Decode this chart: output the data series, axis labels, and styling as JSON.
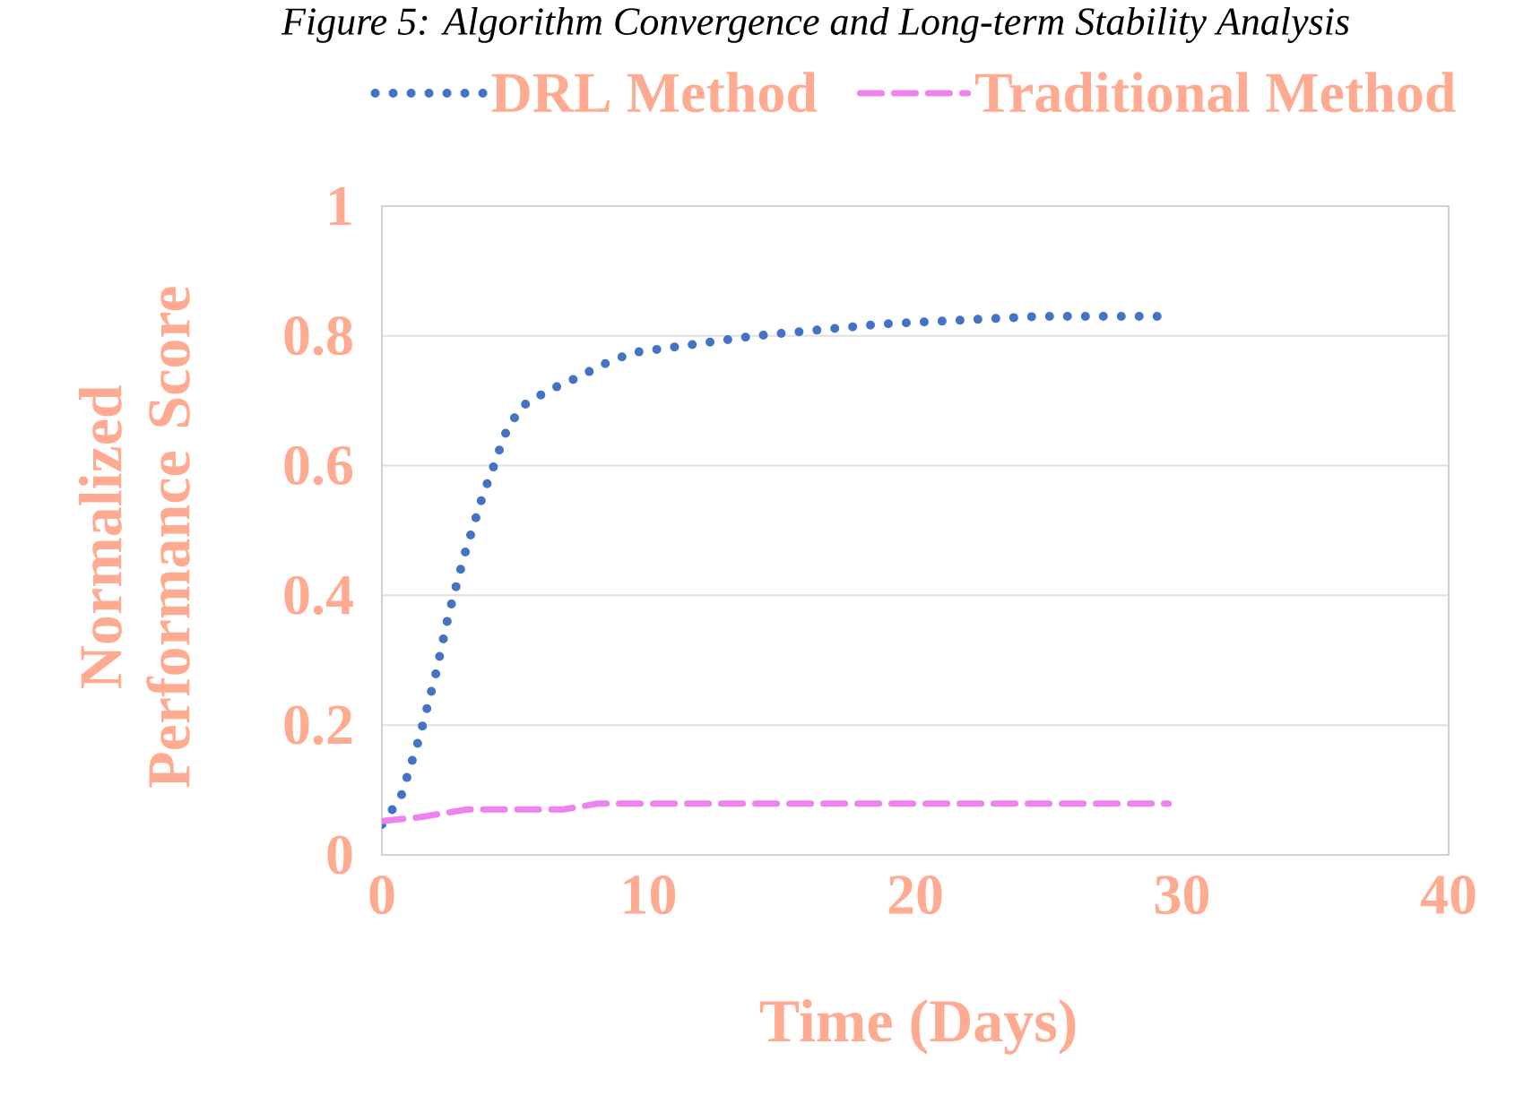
{
  "chart_data": {
    "type": "line",
    "title": "Figure 5: Algorithm Convergence and Long-term Stability Analysis",
    "xlabel": "Time (Days)",
    "ylabel": "Normalized Performance Score",
    "xlim": [
      0,
      40
    ],
    "xticks": [
      0,
      10,
      20,
      30,
      40
    ],
    "ylim": [
      0,
      1
    ],
    "yticks": [
      0,
      0.2,
      0.4,
      0.6,
      0.8,
      1
    ],
    "grid": "y",
    "legend": "top",
    "series": [
      {
        "name": "DRL Method",
        "color": "#4472c4",
        "line_style": "dotted",
        "x": [
          0,
          0.7,
          1.4,
          2,
          2.5,
          3.1,
          3.8,
          4.2,
          4.6,
          5.2,
          6.2,
          7.3,
          8.3,
          9.4,
          11.7,
          14,
          18.7,
          24.6,
          29.3
        ],
        "values": [
          0.047,
          0.088,
          0.18,
          0.275,
          0.37,
          0.463,
          0.556,
          0.6,
          0.647,
          0.69,
          0.715,
          0.735,
          0.756,
          0.774,
          0.787,
          0.8,
          0.818,
          0.83,
          0.83
        ]
      },
      {
        "name": "Traditional Method",
        "color": "#ee82ee",
        "line_style": "dashed",
        "x": [
          0,
          1.4,
          3.2,
          6.8,
          8.1,
          29.5
        ],
        "values": [
          0.052,
          0.058,
          0.07,
          0.07,
          0.079,
          0.079
        ]
      }
    ]
  }
}
